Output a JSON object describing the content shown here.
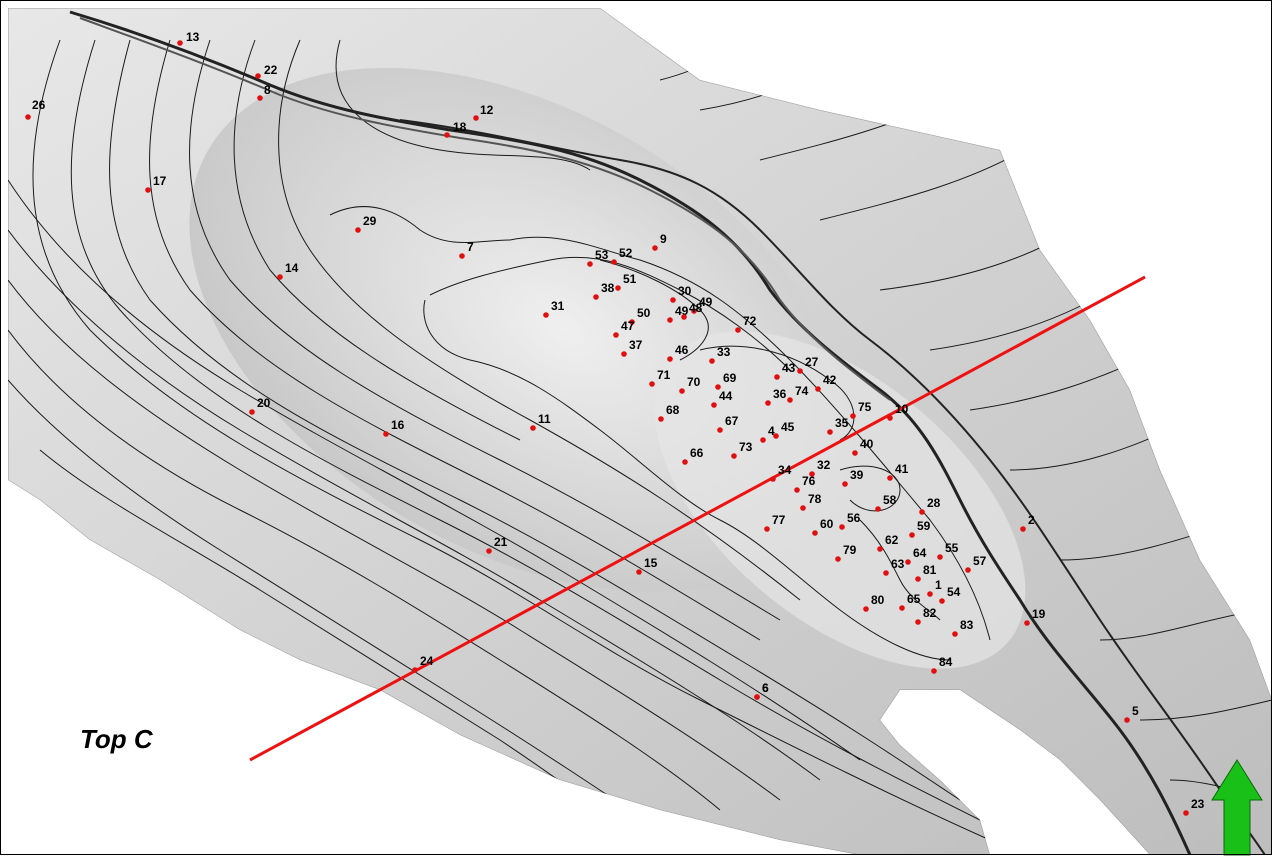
{
  "map": {
    "title": "Top C",
    "wells": [
      {
        "label": "13"
      },
      {
        "label": "22"
      },
      {
        "label": "8"
      },
      {
        "label": "26"
      },
      {
        "label": "12"
      },
      {
        "label": "18"
      },
      {
        "label": "17"
      },
      {
        "label": "29"
      },
      {
        "label": "7"
      },
      {
        "label": "9"
      },
      {
        "label": "53"
      },
      {
        "label": "52"
      },
      {
        "label": "51"
      },
      {
        "label": "14"
      },
      {
        "label": "38"
      },
      {
        "label": "30"
      },
      {
        "label": "49"
      },
      {
        "label": "49"
      },
      {
        "label": "48"
      },
      {
        "label": "50"
      },
      {
        "label": "31"
      },
      {
        "label": "47"
      },
      {
        "label": "72"
      },
      {
        "label": "37"
      },
      {
        "label": "46"
      },
      {
        "label": "33"
      },
      {
        "label": "27"
      },
      {
        "label": "43"
      },
      {
        "label": "42"
      },
      {
        "label": "71"
      },
      {
        "label": "70"
      },
      {
        "label": "69"
      },
      {
        "label": "44"
      },
      {
        "label": "36"
      },
      {
        "label": "74"
      },
      {
        "label": "20"
      },
      {
        "label": "68"
      },
      {
        "label": "75"
      },
      {
        "label": "10"
      },
      {
        "label": "11"
      },
      {
        "label": "67"
      },
      {
        "label": "35"
      },
      {
        "label": "16"
      },
      {
        "label": "4"
      },
      {
        "label": "45"
      },
      {
        "label": "73"
      },
      {
        "label": "40"
      },
      {
        "label": "66"
      },
      {
        "label": "32"
      },
      {
        "label": "41"
      },
      {
        "label": "34"
      },
      {
        "label": "39"
      },
      {
        "label": "76"
      },
      {
        "label": "78"
      },
      {
        "label": "58"
      },
      {
        "label": "28"
      },
      {
        "label": "56"
      },
      {
        "label": "2"
      },
      {
        "label": "77"
      },
      {
        "label": "60"
      },
      {
        "label": "59"
      },
      {
        "label": "21"
      },
      {
        "label": "62"
      },
      {
        "label": "6"
      },
      {
        "label": "79"
      },
      {
        "label": "55"
      },
      {
        "label": "64"
      },
      {
        "label": "63"
      },
      {
        "label": "57"
      },
      {
        "label": "15"
      },
      {
        "label": "81"
      },
      {
        "label": "54"
      },
      {
        "label": "1"
      },
      {
        "label": "80"
      },
      {
        "label": "65"
      },
      {
        "label": "82"
      },
      {
        "label": "19"
      },
      {
        "label": "83"
      },
      {
        "label": "24"
      },
      {
        "label": "84"
      },
      {
        "label": "6"
      },
      {
        "label": "5"
      },
      {
        "label": "23"
      }
    ],
    "colors": {
      "well_marker": "#e01010",
      "section_line": "#ee1111",
      "contour": "#1a1a1a",
      "fault": "#222222",
      "north_arrow": "#18c018"
    },
    "north_arrow_icon": "north-arrow-icon"
  }
}
